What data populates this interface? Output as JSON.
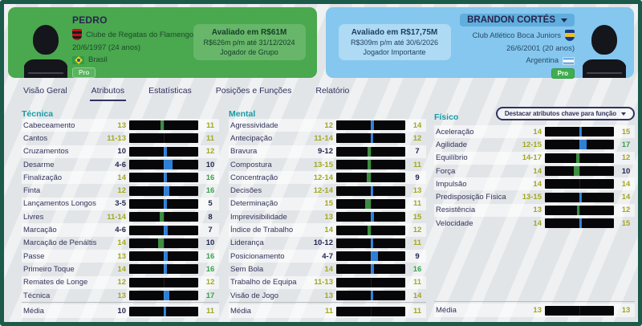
{
  "players": {
    "left": {
      "name": "PEDRO",
      "club": "Clube de Regatas do Flamengo",
      "birth": "20/6/1997 (24 anos)",
      "nation": "Brasil",
      "pro_label": "Pro",
      "value": {
        "title": "Avaliado em R$61M",
        "wage": "R$626m p/m até 31/12/2024",
        "status": "Jogador de Grupo"
      }
    },
    "right": {
      "name": "BRANDON CORTÉS",
      "club": "Club Atlético Boca Juniors",
      "birth": "26/6/2001 (20 anos)",
      "nation": "Argentina",
      "pro_label": "Pro",
      "value": {
        "title": "Avaliado em R$17,75M",
        "wage": "R$309m p/m até 30/6/2026",
        "status": "Jogador Importante"
      }
    }
  },
  "tabs": {
    "items": [
      "Visão Geral",
      "Atributos",
      "Estatísticas",
      "Posições e Funções",
      "Relatório"
    ],
    "active_index": 1
  },
  "controls": {
    "highlight_dropdown_label": "Destacar atributos chave para função"
  },
  "sections": [
    {
      "title": "Técnica",
      "rows": [
        {
          "name": "Cabeceamento",
          "p": "13",
          "b": "11"
        },
        {
          "name": "Cantos",
          "p": "11-13",
          "b": "11"
        },
        {
          "name": "Cruzamentos",
          "p": "10",
          "b": "12"
        },
        {
          "name": "Desarme",
          "p": "4-6",
          "b": "10"
        },
        {
          "name": "Finalização",
          "p": "14",
          "b": "16"
        },
        {
          "name": "Finta",
          "p": "12",
          "b": "16"
        },
        {
          "name": "Lançamentos Longos",
          "p": "3-5",
          "b": "5"
        },
        {
          "name": "Livres",
          "p": "11-14",
          "b": "8"
        },
        {
          "name": "Marcação",
          "p": "4-6",
          "b": "7"
        },
        {
          "name": "Marcação de Penáltis",
          "p": "14",
          "b": "10"
        },
        {
          "name": "Passe",
          "p": "13",
          "b": "16"
        },
        {
          "name": "Primeiro Toque",
          "p": "14",
          "b": "16"
        },
        {
          "name": "Remates de Longe",
          "p": "12",
          "b": "12"
        },
        {
          "name": "Técnica",
          "p": "13",
          "b": "17"
        }
      ],
      "average": {
        "name": "Média",
        "p": "10",
        "b": "11"
      }
    },
    {
      "title": "Mental",
      "rows": [
        {
          "name": "Agressividade",
          "p": "12",
          "b": "14"
        },
        {
          "name": "Antecipação",
          "p": "11-14",
          "b": "12"
        },
        {
          "name": "Bravura",
          "p": "9-12",
          "b": "7"
        },
        {
          "name": "Compostura",
          "p": "13-15",
          "b": "11"
        },
        {
          "name": "Concentração",
          "p": "12-14",
          "b": "9"
        },
        {
          "name": "Decisões",
          "p": "12-14",
          "b": "13"
        },
        {
          "name": "Determinação",
          "p": "15",
          "b": "11"
        },
        {
          "name": "Imprevisibilidade",
          "p": "13",
          "b": "15"
        },
        {
          "name": "Índice de Trabalho",
          "p": "14",
          "b": "12"
        },
        {
          "name": "Liderança",
          "p": "10-12",
          "b": "11"
        },
        {
          "name": "Posicionamento",
          "p": "4-7",
          "b": "9"
        },
        {
          "name": "Sem Bola",
          "p": "14",
          "b": "16"
        },
        {
          "name": "Trabalho de Equipa",
          "p": "11-13",
          "b": "11"
        },
        {
          "name": "Visão de Jogo",
          "p": "13",
          "b": "14"
        }
      ],
      "average": {
        "name": "Média",
        "p": "11",
        "b": "11"
      }
    },
    {
      "title": "Físico",
      "rows": [
        {
          "name": "Aceleração",
          "p": "14",
          "b": "15"
        },
        {
          "name": "Agilidade",
          "p": "12-15",
          "b": "17"
        },
        {
          "name": "Equilíbrio",
          "p": "14-17",
          "b": "12"
        },
        {
          "name": "Força",
          "p": "14",
          "b": "10"
        },
        {
          "name": "Impulsão",
          "p": "14",
          "b": "14"
        },
        {
          "name": "Predisposição Física",
          "p": "13-15",
          "b": "14"
        },
        {
          "name": "Resistência",
          "p": "13",
          "b": "12"
        },
        {
          "name": "Velocidade",
          "p": "14",
          "b": "15"
        }
      ],
      "average": {
        "name": "Média",
        "p": "13",
        "b": "13"
      }
    }
  ],
  "colors": {
    "value_low": "#262650",
    "value_mid": "#a3a81f",
    "value_high": "#3aa24d",
    "marker_left_player": "#3e8e41",
    "marker_right_player": "#2e7fd6",
    "card_left": "#4aa84e",
    "card_right": "#85c7ee",
    "section_header": "#169ba5",
    "frame": "#1c5a4a"
  }
}
